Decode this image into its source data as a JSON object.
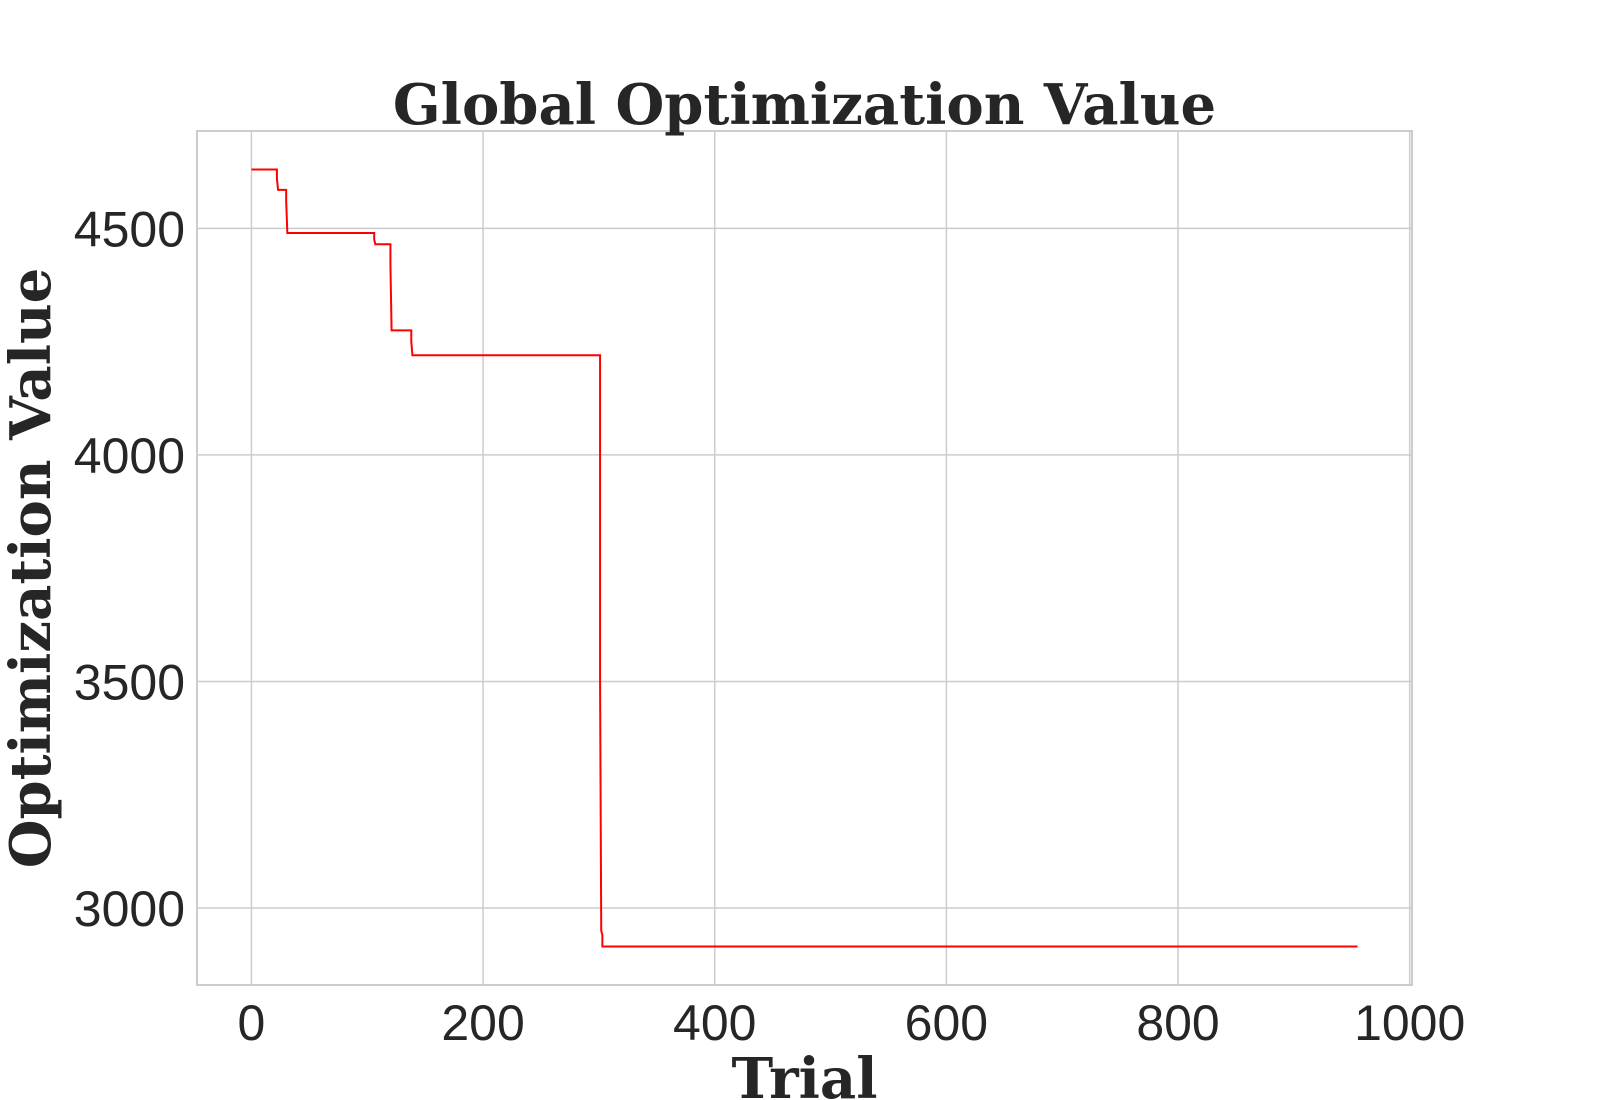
{
  "chart_data": {
    "type": "line",
    "title": "Global Optimization Value",
    "xlabel": "Trial",
    "ylabel": "Optimization Value",
    "xlim": [
      -47,
      1002
    ],
    "ylim": [
      2830,
      4715
    ],
    "xticks": [
      0,
      200,
      400,
      600,
      800,
      1000
    ],
    "yticks": [
      3000,
      3500,
      4000,
      4500
    ],
    "xtick_labels": [
      "0",
      "200",
      "400",
      "600",
      "800",
      "1000"
    ],
    "ytick_labels": [
      "3000",
      "3500",
      "4000",
      "4500"
    ],
    "grid": true,
    "legend": "none",
    "series": [
      {
        "color": "#ff0000",
        "x": [
          0,
          22,
          22,
          23,
          23,
          30,
          30,
          31,
          31,
          106,
          106,
          107,
          107,
          120,
          120,
          121,
          121,
          138,
          138,
          139,
          139,
          301,
          301,
          302,
          302,
          303,
          303,
          955
        ],
        "y": [
          4630,
          4630,
          4610,
          4585,
          4585,
          4585,
          4560,
          4490,
          4490,
          4490,
          4475,
          4465,
          4465,
          4465,
          4420,
          4275,
          4275,
          4275,
          4250,
          4220,
          4220,
          4220,
          3500,
          2950,
          2950,
          2940,
          2915,
          2915
        ]
      }
    ]
  }
}
